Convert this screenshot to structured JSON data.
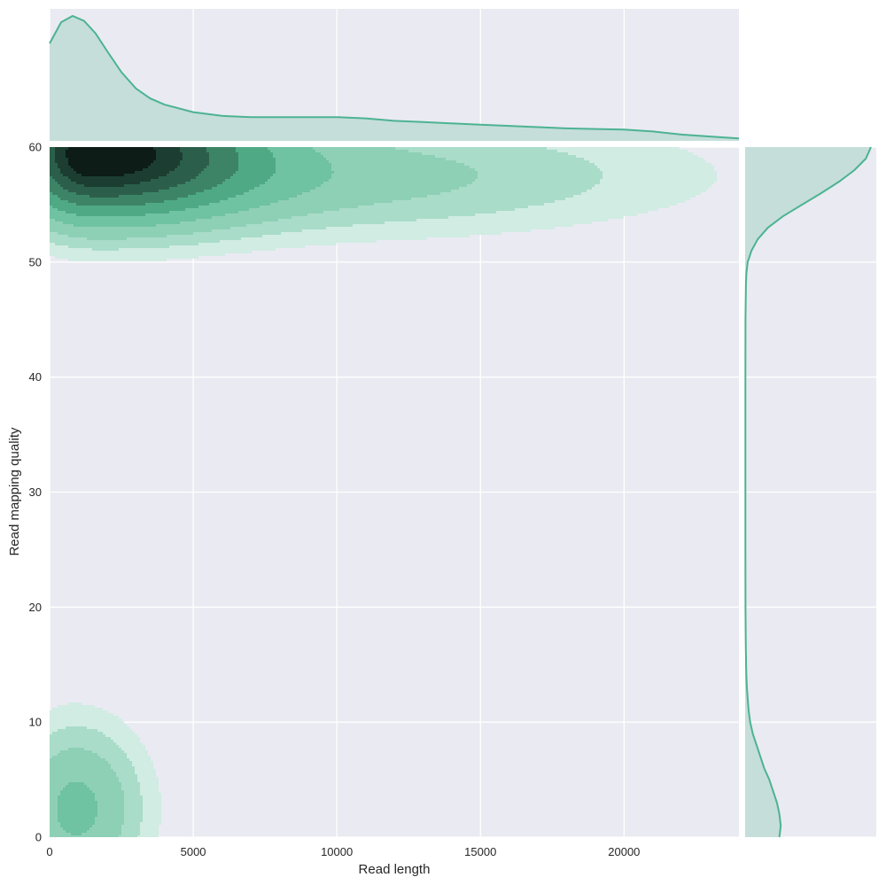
{
  "chart_data": {
    "type": "kde-joint",
    "xlabel": "Read length",
    "ylabel": "Read mapping quality",
    "xlim": [
      0,
      24000
    ],
    "ylim": [
      0,
      60
    ],
    "grid": true,
    "xticks": [
      0,
      5000,
      10000,
      15000,
      20000
    ],
    "yticks": [
      0,
      10,
      20,
      30,
      40,
      50,
      60
    ],
    "xtick_labels": [
      "0",
      "5000",
      "10000",
      "15000",
      "20000"
    ],
    "ytick_labels": [
      "0",
      "10",
      "20",
      "30",
      "40",
      "50",
      "60"
    ],
    "colors": {
      "background": "#eaeaf2",
      "grid": "#ffffff",
      "line": "#4cb391",
      "marginal_fill": "#c3ddd8",
      "levels": [
        "#d0ece3",
        "#a9dcc9",
        "#8ed0b6",
        "#6fc2a2",
        "#4fa985",
        "#3d8467",
        "#2c5f4b",
        "#1c3d31",
        "#0d1c16"
      ]
    },
    "joint_kde": {
      "components": [
        {
          "cx": 1500,
          "cy": 59.5,
          "sx_left": 1700,
          "sx_right": 3500,
          "sy": 3.6,
          "weight": 1.0
        },
        {
          "cx": 9000,
          "cy": 57.5,
          "sx_left": 5500,
          "sx_right": 8000,
          "sy": 3.2,
          "weight": 0.17
        },
        {
          "cx": 900,
          "cy": 2.5,
          "sx_left": 1300,
          "sx_right": 1500,
          "sy": 4.6,
          "weight": 0.25
        }
      ],
      "levels": [
        0.035,
        0.075,
        0.13,
        0.22,
        0.34,
        0.48,
        0.63,
        0.78,
        0.91
      ]
    },
    "x_marginal": {
      "x": [
        0,
        400,
        800,
        1200,
        1600,
        2000,
        2500,
        3000,
        3500,
        4000,
        5000,
        6000,
        7000,
        8000,
        9000,
        10000,
        11000,
        12000,
        13000,
        14000,
        15000,
        16000,
        17000,
        18000,
        19000,
        20000,
        21000,
        22000,
        23000,
        24000
      ],
      "density": [
        0.78,
        0.95,
        1.0,
        0.96,
        0.86,
        0.72,
        0.55,
        0.42,
        0.34,
        0.29,
        0.23,
        0.2,
        0.19,
        0.19,
        0.19,
        0.19,
        0.18,
        0.16,
        0.15,
        0.14,
        0.13,
        0.12,
        0.11,
        0.1,
        0.095,
        0.09,
        0.075,
        0.05,
        0.035,
        0.02
      ]
    },
    "y_marginal": {
      "y": [
        0,
        1,
        2,
        3,
        4,
        5,
        6,
        7,
        8,
        9,
        10,
        11,
        12,
        13,
        14,
        15,
        16,
        17,
        18,
        20,
        25,
        30,
        35,
        40,
        45,
        48,
        49,
        50,
        51,
        52,
        53,
        54,
        55,
        56,
        57,
        58,
        59,
        60
      ],
      "density": [
        0.27,
        0.28,
        0.27,
        0.25,
        0.22,
        0.19,
        0.15,
        0.12,
        0.09,
        0.06,
        0.04,
        0.028,
        0.02,
        0.014,
        0.01,
        0.008,
        0.006,
        0.005,
        0.004,
        0.003,
        0.002,
        0.002,
        0.002,
        0.002,
        0.003,
        0.006,
        0.01,
        0.02,
        0.05,
        0.1,
        0.18,
        0.3,
        0.45,
        0.6,
        0.74,
        0.86,
        0.95,
        0.99
      ]
    }
  }
}
